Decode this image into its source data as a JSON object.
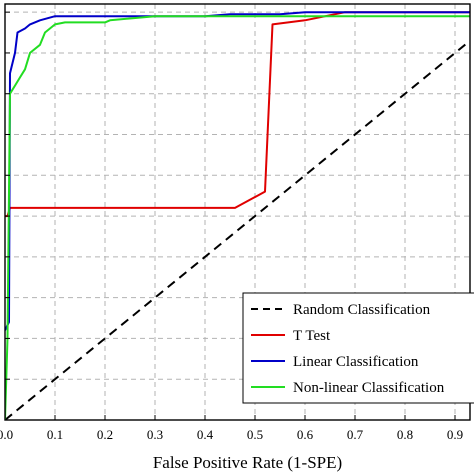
{
  "chart_data": {
    "type": "line",
    "title": "",
    "xlabel": "False Positive Rate (1-SPE)",
    "ylabel": "",
    "xlim": [
      0,
      0.93
    ],
    "ylim": [
      0,
      1.02
    ],
    "grid": true,
    "x_ticks": [
      0,
      0.1,
      0.2,
      0.3,
      0.4,
      0.5,
      0.6,
      0.7,
      0.8,
      0.9
    ],
    "x_tick_labels": [
      "0.0",
      "0.1",
      "0.2",
      "0.3",
      "0.4",
      "0.5",
      "0.6",
      "0.7",
      "0.8",
      "0.9"
    ],
    "y_ticks": [
      0,
      0.1,
      0.2,
      0.3,
      0.4,
      0.5,
      0.6,
      0.7,
      0.8,
      0.9,
      1.0
    ],
    "legend_position": "bottom-right",
    "series": [
      {
        "name": "Random Classification",
        "color": "#000000",
        "dash": "dashed",
        "x": [
          0,
          1
        ],
        "y": [
          0,
          1
        ]
      },
      {
        "name": "T Test",
        "color": "#e00000",
        "dash": "solid",
        "x": [
          0,
          0.005,
          0.01,
          0.46,
          0.52,
          0.535,
          0.6,
          0.68,
          0.93
        ],
        "y": [
          0.5,
          0.5,
          0.52,
          0.52,
          0.56,
          0.97,
          0.98,
          1.0,
          1.0
        ]
      },
      {
        "name": "Linear Classification",
        "color": "#0000c8",
        "dash": "solid",
        "x": [
          0,
          0.008,
          0.01,
          0.02,
          0.025,
          0.04,
          0.05,
          0.07,
          0.1,
          0.15,
          0.25,
          0.4,
          0.45,
          0.55,
          0.6,
          0.66,
          0.93
        ],
        "y": [
          0.22,
          0.24,
          0.85,
          0.9,
          0.95,
          0.96,
          0.97,
          0.98,
          0.99,
          0.99,
          0.99,
          0.99,
          0.995,
          0.995,
          1.0,
          1.0,
          1.0
        ]
      },
      {
        "name": "Non-linear Classification",
        "color": "#22dd22",
        "dash": "solid",
        "x": [
          0,
          0.005,
          0.01,
          0.02,
          0.03,
          0.04,
          0.05,
          0.07,
          0.08,
          0.1,
          0.12,
          0.2,
          0.21,
          0.3,
          0.4,
          0.5,
          0.93
        ],
        "y": [
          0.0,
          0.2,
          0.8,
          0.82,
          0.84,
          0.86,
          0.9,
          0.92,
          0.95,
          0.97,
          0.975,
          0.975,
          0.98,
          0.99,
          0.99,
          0.99,
          0.99
        ]
      }
    ]
  }
}
